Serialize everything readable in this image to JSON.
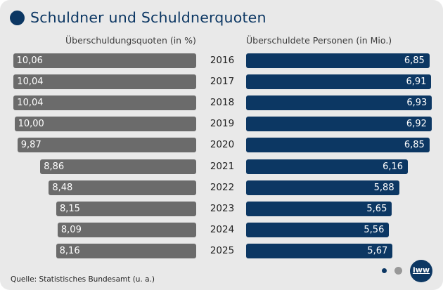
{
  "chart_data": {
    "type": "bar",
    "title": "Schuldner und Schuldnerquoten",
    "orientation": "horizontal-butterfly",
    "categories": [
      "2016",
      "2017",
      "2018",
      "2019",
      "2020",
      "2021",
      "2022",
      "2023",
      "2024",
      "2025"
    ],
    "series": [
      {
        "name": "Überschuldungsquoten (in %)",
        "values": [
          10.06,
          10.04,
          10.04,
          10.0,
          9.87,
          8.86,
          8.48,
          8.15,
          8.09,
          8.16
        ],
        "labels": [
          "10,06",
          "10,04",
          "10,04",
          "10,00",
          "9,87",
          "8,86",
          "8,48",
          "8,15",
          "8,09",
          "8,16"
        ],
        "color": "#6b6b6b",
        "direction": "left"
      },
      {
        "name": "Überschuldete Personen (in Mio.)",
        "values": [
          6.85,
          6.91,
          6.93,
          6.92,
          6.85,
          6.16,
          5.88,
          5.65,
          5.56,
          5.67
        ],
        "labels": [
          "6,85",
          "6,91",
          "6,93",
          "6,92",
          "6,85",
          "6,16",
          "5,88",
          "5,65",
          "5,56",
          "5,67"
        ],
        "color": "#0c3763",
        "direction": "right"
      }
    ],
    "xlabel": "",
    "ylabel": "",
    "grid": false,
    "legend": "column-headers-top"
  },
  "header": {
    "title": "Schuldner und Schuldnerquoten",
    "left_column": "Überschuldungsquoten (in %)",
    "right_column": "Überschuldete Personen (in Mio.)"
  },
  "footer": {
    "source": "Quelle: Statistisches Bundesamt (u. a.)",
    "logo_text": "iww"
  },
  "colors": {
    "accent": "#0c3763",
    "grey_bar": "#6b6b6b",
    "background": "#e9e9e9"
  }
}
